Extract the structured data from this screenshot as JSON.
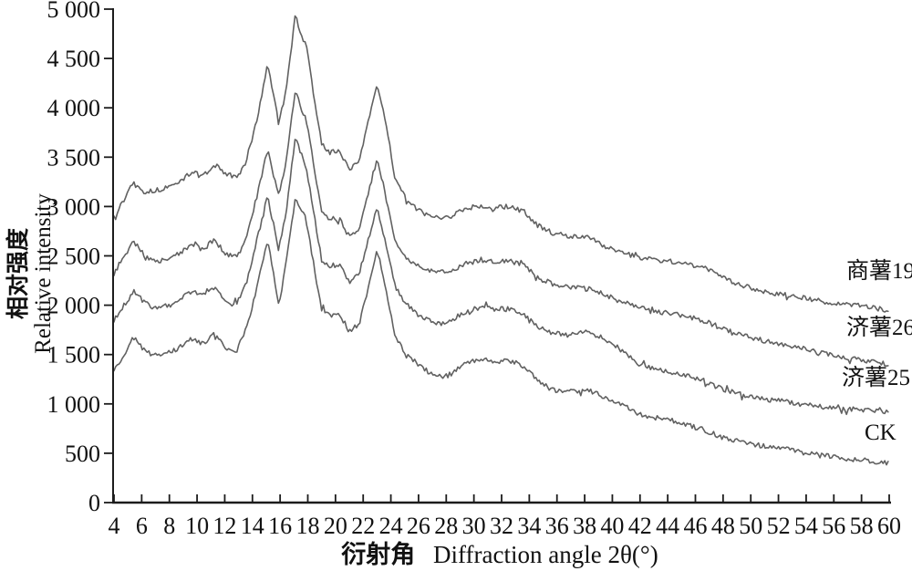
{
  "figure": {
    "background": "#ffffff",
    "axis_color": "#1c1c1c",
    "curve_color": "#616161",
    "text_color": "#111111"
  },
  "chart": {
    "x_title_zh": "衍射角",
    "x_title_en": "Diffraction angle 2θ(°)",
    "y_title_zh": "相对强度",
    "y_title_en": "Relative intensity",
    "x_tick_values": [
      4,
      6,
      8,
      10,
      12,
      14,
      16,
      18,
      20,
      22,
      24,
      26,
      28,
      30,
      32,
      34,
      36,
      38,
      40,
      42,
      44,
      46,
      48,
      50,
      52,
      54,
      56,
      58,
      60
    ],
    "x_tick_labels": [
      "4",
      "6",
      "8",
      "10",
      "12",
      "14",
      "16",
      "18",
      "20",
      "22",
      "24",
      "26",
      "28",
      "30",
      "32",
      "34",
      "36",
      "38",
      "40",
      "42",
      "44",
      "46",
      "48",
      "50",
      "52",
      "54",
      "56",
      "58",
      "60"
    ],
    "y_tick_values": [
      0,
      500,
      1000,
      1500,
      2000,
      2500,
      3000,
      3500,
      4000,
      4500,
      5000
    ],
    "y_tick_labels": [
      "0",
      "500",
      "1 000",
      "1 500",
      "2 000",
      "2 500",
      "3 000",
      "3 500",
      "4 000",
      "4 500",
      "5 000"
    ]
  },
  "chart_data": {
    "type": "line",
    "title": "",
    "xlabel": "衍射角 Diffraction angle 2θ(°)",
    "ylabel": "相对强度 Relative intensity",
    "xlim": [
      4,
      60
    ],
    "ylim": [
      0,
      5000
    ],
    "grid": false,
    "legend_position": "inline-right",
    "noise_amplitude": 50,
    "series": [
      {
        "label": "商薯19",
        "points": [
          [
            4,
            2900
          ],
          [
            4.7,
            3060
          ],
          [
            5.4,
            3260
          ],
          [
            6.2,
            3150
          ],
          [
            7,
            3160
          ],
          [
            8.2,
            3210
          ],
          [
            9,
            3280
          ],
          [
            9.7,
            3360
          ],
          [
            10.4,
            3300
          ],
          [
            11.2,
            3430
          ],
          [
            12.1,
            3330
          ],
          [
            12.9,
            3290
          ],
          [
            13.6,
            3470
          ],
          [
            14.3,
            3860
          ],
          [
            15.1,
            4450
          ],
          [
            15.5,
            4150
          ],
          [
            15.9,
            3840
          ],
          [
            16.4,
            4160
          ],
          [
            17.1,
            4930
          ],
          [
            17.5,
            4760
          ],
          [
            17.9,
            4610
          ],
          [
            18.4,
            4160
          ],
          [
            19,
            3630
          ],
          [
            19.6,
            3550
          ],
          [
            20.3,
            3560
          ],
          [
            21,
            3380
          ],
          [
            21.7,
            3460
          ],
          [
            22.3,
            3810
          ],
          [
            23,
            4240
          ],
          [
            23.6,
            3890
          ],
          [
            24.3,
            3290
          ],
          [
            25.1,
            3070
          ],
          [
            26,
            2960
          ],
          [
            27,
            2890
          ],
          [
            28.1,
            2880
          ],
          [
            29,
            2960
          ],
          [
            30.4,
            3010
          ],
          [
            31.5,
            2990
          ],
          [
            32.6,
            3000
          ],
          [
            33.6,
            2950
          ],
          [
            34.6,
            2810
          ],
          [
            35.7,
            2730
          ],
          [
            36.8,
            2700
          ],
          [
            38.2,
            2690
          ],
          [
            39.3,
            2610
          ],
          [
            40.5,
            2540
          ],
          [
            42,
            2480
          ],
          [
            43.6,
            2450
          ],
          [
            45,
            2430
          ],
          [
            46.5,
            2390
          ],
          [
            48,
            2280
          ],
          [
            49.6,
            2190
          ],
          [
            51,
            2140
          ],
          [
            52.6,
            2100
          ],
          [
            54,
            2070
          ],
          [
            56,
            2020
          ],
          [
            58,
            1990
          ],
          [
            60,
            1950
          ]
        ]
      },
      {
        "label": "济薯26",
        "points": [
          [
            4,
            2320
          ],
          [
            4.7,
            2470
          ],
          [
            5.4,
            2650
          ],
          [
            6.2,
            2500
          ],
          [
            7,
            2440
          ],
          [
            8.2,
            2480
          ],
          [
            9,
            2550
          ],
          [
            9.7,
            2620
          ],
          [
            10.4,
            2560
          ],
          [
            11.2,
            2660
          ],
          [
            12.1,
            2520
          ],
          [
            12.9,
            2490
          ],
          [
            13.6,
            2700
          ],
          [
            14.3,
            3090
          ],
          [
            15.1,
            3580
          ],
          [
            15.5,
            3340
          ],
          [
            15.9,
            3100
          ],
          [
            16.4,
            3410
          ],
          [
            17.1,
            4180
          ],
          [
            17.5,
            4010
          ],
          [
            17.9,
            3860
          ],
          [
            18.4,
            3450
          ],
          [
            19,
            2940
          ],
          [
            19.6,
            2870
          ],
          [
            20.3,
            2880
          ],
          [
            21,
            2690
          ],
          [
            21.7,
            2770
          ],
          [
            22.3,
            3090
          ],
          [
            23,
            3490
          ],
          [
            23.6,
            3140
          ],
          [
            24.3,
            2660
          ],
          [
            25.1,
            2480
          ],
          [
            26,
            2390
          ],
          [
            27,
            2340
          ],
          [
            28.1,
            2330
          ],
          [
            29,
            2400
          ],
          [
            30.4,
            2460
          ],
          [
            31.5,
            2440
          ],
          [
            32.6,
            2450
          ],
          [
            33.6,
            2400
          ],
          [
            34.6,
            2280
          ],
          [
            35.7,
            2210
          ],
          [
            36.8,
            2180
          ],
          [
            38.2,
            2170
          ],
          [
            39.3,
            2120
          ],
          [
            40.5,
            2040
          ],
          [
            42,
            1980
          ],
          [
            43.6,
            1930
          ],
          [
            45,
            1900
          ],
          [
            46.5,
            1850
          ],
          [
            48,
            1760
          ],
          [
            49.6,
            1690
          ],
          [
            51,
            1640
          ],
          [
            52.6,
            1590
          ],
          [
            54,
            1550
          ],
          [
            56,
            1490
          ],
          [
            58,
            1440
          ],
          [
            60,
            1400
          ]
        ]
      },
      {
        "label": "济薯25",
        "points": [
          [
            4,
            1850
          ],
          [
            4.7,
            1990
          ],
          [
            5.4,
            2150
          ],
          [
            6.2,
            2030
          ],
          [
            7,
            1970
          ],
          [
            8.2,
            2010
          ],
          [
            9,
            2080
          ],
          [
            9.7,
            2150
          ],
          [
            10.4,
            2090
          ],
          [
            11.2,
            2180
          ],
          [
            12.1,
            2050
          ],
          [
            12.9,
            2020
          ],
          [
            13.6,
            2250
          ],
          [
            14.3,
            2640
          ],
          [
            15.1,
            3110
          ],
          [
            15.5,
            2830
          ],
          [
            15.9,
            2560
          ],
          [
            16.4,
            2910
          ],
          [
            17.1,
            3700
          ],
          [
            17.5,
            3540
          ],
          [
            17.9,
            3390
          ],
          [
            18.4,
            2960
          ],
          [
            19,
            2460
          ],
          [
            19.6,
            2400
          ],
          [
            20.3,
            2410
          ],
          [
            21,
            2230
          ],
          [
            21.7,
            2310
          ],
          [
            22.3,
            2620
          ],
          [
            23,
            2980
          ],
          [
            23.6,
            2640
          ],
          [
            24.3,
            2190
          ],
          [
            25.1,
            2010
          ],
          [
            26,
            1900
          ],
          [
            27,
            1830
          ],
          [
            28.1,
            1820
          ],
          [
            29,
            1900
          ],
          [
            30.4,
            1980
          ],
          [
            31.5,
            1960
          ],
          [
            32.6,
            1960
          ],
          [
            33.6,
            1910
          ],
          [
            34.6,
            1780
          ],
          [
            35.7,
            1720
          ],
          [
            36.8,
            1700
          ],
          [
            38.2,
            1730
          ],
          [
            39.3,
            1660
          ],
          [
            40.5,
            1560
          ],
          [
            42,
            1400
          ],
          [
            43.6,
            1340
          ],
          [
            45,
            1300
          ],
          [
            46.5,
            1230
          ],
          [
            48,
            1150
          ],
          [
            49.6,
            1090
          ],
          [
            51,
            1050
          ],
          [
            52.6,
            1020
          ],
          [
            54,
            990
          ],
          [
            56,
            960
          ],
          [
            58,
            940
          ],
          [
            60,
            925
          ]
        ]
      },
      {
        "label": "CK",
        "points": [
          [
            4,
            1340
          ],
          [
            4.7,
            1490
          ],
          [
            5.4,
            1670
          ],
          [
            6.2,
            1540
          ],
          [
            7,
            1490
          ],
          [
            8.2,
            1530
          ],
          [
            9,
            1600
          ],
          [
            9.7,
            1670
          ],
          [
            10.4,
            1610
          ],
          [
            11.2,
            1700
          ],
          [
            12.1,
            1570
          ],
          [
            12.9,
            1540
          ],
          [
            13.6,
            1780
          ],
          [
            14.3,
            2170
          ],
          [
            15.1,
            2650
          ],
          [
            15.5,
            2330
          ],
          [
            15.9,
            2000
          ],
          [
            16.4,
            2390
          ],
          [
            17.1,
            3080
          ],
          [
            17.5,
            2970
          ],
          [
            17.9,
            2860
          ],
          [
            18.4,
            2430
          ],
          [
            19,
            1960
          ],
          [
            19.6,
            1900
          ],
          [
            20.3,
            1910
          ],
          [
            21,
            1730
          ],
          [
            21.7,
            1810
          ],
          [
            22.3,
            2130
          ],
          [
            23,
            2570
          ],
          [
            23.6,
            2190
          ],
          [
            24.3,
            1690
          ],
          [
            25.1,
            1490
          ],
          [
            26,
            1400
          ],
          [
            27,
            1290
          ],
          [
            28.1,
            1280
          ],
          [
            29,
            1380
          ],
          [
            30.4,
            1450
          ],
          [
            31.5,
            1430
          ],
          [
            32.6,
            1440
          ],
          [
            33.6,
            1380
          ],
          [
            34.6,
            1240
          ],
          [
            35.7,
            1140
          ],
          [
            36.8,
            1120
          ],
          [
            38.2,
            1140
          ],
          [
            39.3,
            1080
          ],
          [
            40.5,
            1000
          ],
          [
            42,
            890
          ],
          [
            43.6,
            850
          ],
          [
            45,
            810
          ],
          [
            46.5,
            740
          ],
          [
            48,
            660
          ],
          [
            49.6,
            610
          ],
          [
            51,
            570
          ],
          [
            52.6,
            540
          ],
          [
            54,
            500
          ],
          [
            56,
            460
          ],
          [
            58,
            430
          ],
          [
            60,
            400
          ]
        ]
      }
    ]
  }
}
